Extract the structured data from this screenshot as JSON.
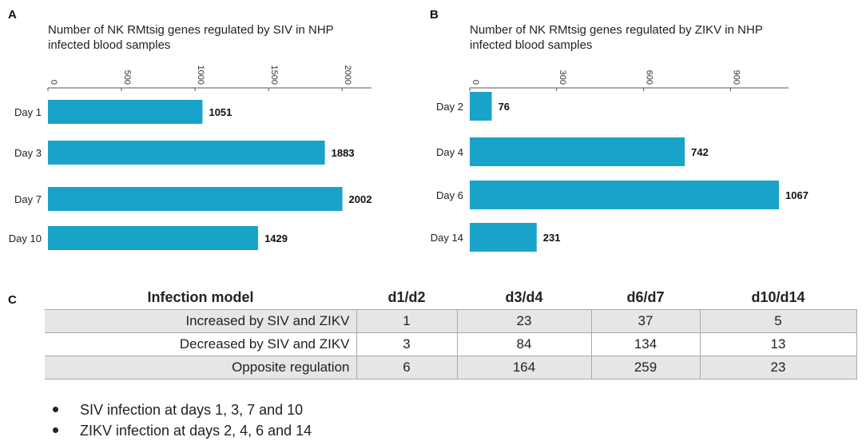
{
  "panels": {
    "a": "A",
    "b": "B",
    "c": "C"
  },
  "chart_data": [
    {
      "type": "bar",
      "orientation": "horizontal",
      "title": "Number of NK RMtsig genes regulated by SIV in NHP infected blood samples",
      "title_lines": [
        "Number of NK RMtsig genes regulated by SIV in NHP",
        "infected blood samples"
      ],
      "categories": [
        "Day 1",
        "Day 3",
        "Day 7",
        "Day 10"
      ],
      "values": [
        1051,
        1883,
        2002,
        1429
      ],
      "xticks": [
        0,
        500,
        1000,
        1500,
        2000
      ],
      "xlim": [
        0,
        2200
      ],
      "bar_color": "#1aa3c9"
    },
    {
      "type": "bar",
      "orientation": "horizontal",
      "title": "Number of NK RMtsig genes regulated by ZIKV in NHP infected blood samples",
      "title_lines": [
        "Number of NK RMtsig genes regulated by ZIKV in NHP",
        "infected blood samples"
      ],
      "categories": [
        "Day 2",
        "Day 4",
        "Day 6",
        "Day 14"
      ],
      "values": [
        76,
        742,
        1067,
        231
      ],
      "xticks": [
        0,
        300,
        600,
        900
      ],
      "xlim": [
        0,
        1100
      ],
      "bar_color": "#1aa3c9"
    }
  ],
  "table": {
    "headers": [
      "Infection model",
      "d1/d2",
      "d3/d4",
      "d6/d7",
      "d10/d14"
    ],
    "rows": [
      [
        "Increased by SIV and ZIKV",
        "1",
        "23",
        "37",
        "5"
      ],
      [
        "Decreased by SIV and ZIKV",
        "3",
        "84",
        "134",
        "13"
      ],
      [
        "Opposite regulation",
        "6",
        "164",
        "259",
        "23"
      ]
    ]
  },
  "notes": [
    "SIV infection at days 1, 3, 7 and 10",
    "ZIKV infection at days 2, 4, 6 and 14"
  ]
}
